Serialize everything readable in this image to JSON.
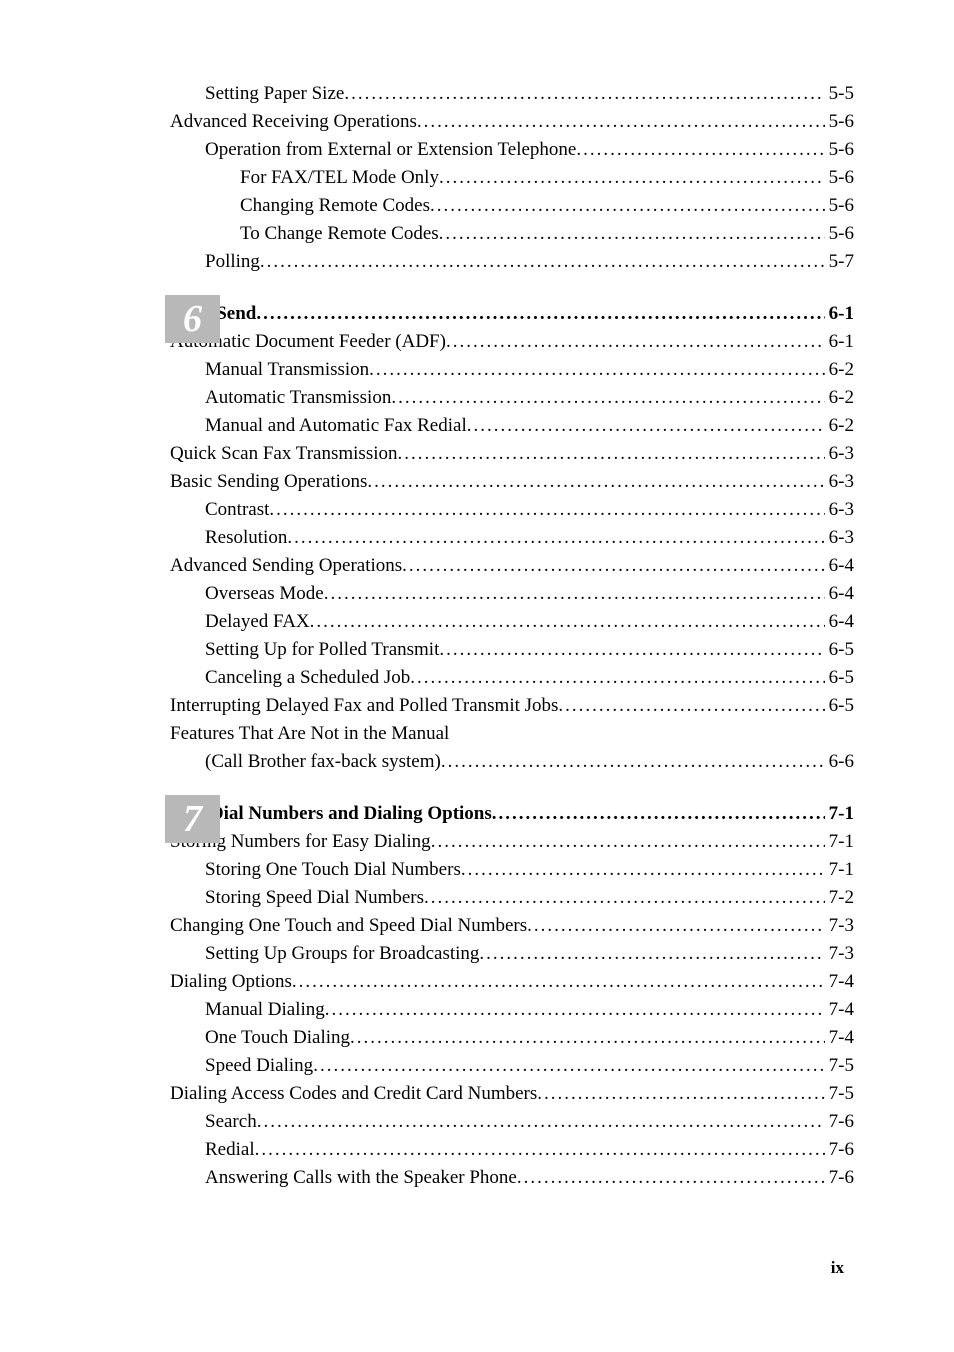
{
  "section5_continued": {
    "entries": [
      {
        "label": "Setting Paper Size",
        "page": "5-5",
        "level": 3
      },
      {
        "label": "Advanced Receiving Operations",
        "page": "5-6",
        "level": 2
      },
      {
        "label": "Operation from External or Extension Telephone",
        "page": "5-6",
        "level": 3
      },
      {
        "label": "For FAX/TEL Mode Only",
        "page": "5-6",
        "level": 4
      },
      {
        "label": "Changing Remote Codes",
        "page": "5-6",
        "level": 4
      },
      {
        "label": "To Change Remote Codes",
        "page": "5-6",
        "level": 4
      },
      {
        "label": "Polling",
        "page": "5-7",
        "level": 3
      }
    ]
  },
  "chapter6": {
    "number": "6",
    "title": "Setup Send",
    "title_page": "6-1",
    "entries": [
      {
        "label": "Automatic Document Feeder (ADF)",
        "page": "6-1",
        "level": 2
      },
      {
        "label": "Manual Transmission",
        "page": "6-2",
        "level": 3
      },
      {
        "label": "Automatic Transmission",
        "page": "6-2",
        "level": 3
      },
      {
        "label": "Manual and Automatic Fax Redial",
        "page": "6-2",
        "level": 3
      },
      {
        "label": "Quick Scan Fax Transmission",
        "page": "6-3",
        "level": 2
      },
      {
        "label": "Basic Sending Operations",
        "page": "6-3",
        "level": 2
      },
      {
        "label": "Contrast",
        "page": "6-3",
        "level": 3
      },
      {
        "label": "Resolution",
        "page": "6-3",
        "level": 3
      },
      {
        "label": "Advanced Sending Operations",
        "page": "6-4",
        "level": 2
      },
      {
        "label": "Overseas Mode",
        "page": "6-4",
        "level": 3
      },
      {
        "label": "Delayed FAX",
        "page": "6-4",
        "level": 3
      },
      {
        "label": "Setting Up for Polled Transmit",
        "page": "6-5",
        "level": 3
      },
      {
        "label": "Canceling a Scheduled Job",
        "page": "6-5",
        "level": 3
      },
      {
        "label": "Interrupting Delayed Fax and Polled Transmit Jobs",
        "page": "6-5",
        "level": 2
      },
      {
        "label": "Features That Are Not in the Manual",
        "page": "",
        "level": 2,
        "nolead": true
      },
      {
        "label": "(Call Brother fax-back system)",
        "page": "6-6",
        "level": 3
      }
    ]
  },
  "chapter7": {
    "number": "7",
    "title": "Auto Dial Numbers and Dialing Options",
    "title_page": "7-1",
    "entries": [
      {
        "label": "Storing Numbers for Easy Dialing",
        "page": "7-1",
        "level": 2
      },
      {
        "label": "Storing One Touch Dial Numbers",
        "page": "7-1",
        "level": 3
      },
      {
        "label": "Storing Speed Dial Numbers",
        "page": "7-2",
        "level": 3
      },
      {
        "label": "Changing One Touch and Speed Dial Numbers",
        "page": "7-3",
        "level": 2
      },
      {
        "label": "Setting Up Groups for Broadcasting",
        "page": "7-3",
        "level": 3
      },
      {
        "label": "Dialing Options",
        "page": "7-4",
        "level": 2
      },
      {
        "label": "Manual Dialing",
        "page": "7-4",
        "level": 3
      },
      {
        "label": "One Touch Dialing",
        "page": "7-4",
        "level": 3
      },
      {
        "label": "Speed Dialing",
        "page": "7-5",
        "level": 3
      },
      {
        "label": "Dialing Access Codes and Credit Card Numbers",
        "page": "7-5",
        "level": 2
      },
      {
        "label": "Search",
        "page": "7-6",
        "level": 3
      },
      {
        "label": "Redial",
        "page": "7-6",
        "level": 3
      },
      {
        "label": "Answering Calls with the Speaker Phone",
        "page": "7-6",
        "level": 3
      }
    ]
  },
  "page_number": "ix",
  "style": {
    "font_family": "Times New Roman",
    "body_fontsize": 19,
    "chapter_num_fontsize": 38,
    "chapter_marker_bg": "#b8b8b8",
    "chapter_num_color": "#ffffff",
    "text_color": "#000000",
    "bg_color": "#ffffff"
  }
}
